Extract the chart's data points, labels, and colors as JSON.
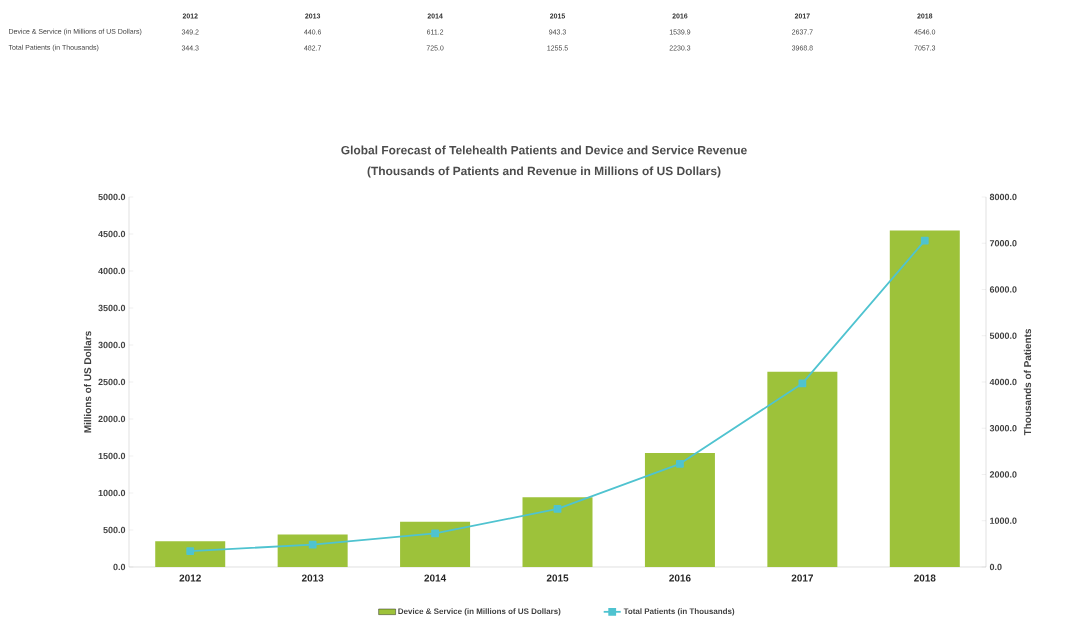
{
  "chart_data": {
    "type": "bar",
    "title": "Global Forecast of Telehealth Patients and Device and Service Revenue",
    "subtitle": "(Thousands of Patients and Revenue in Millions of US Dollars)",
    "ylabel": "Millions of US Dollars",
    "y2label": "Thousands of Patients",
    "categories": [
      "2012",
      "2013",
      "2014",
      "2015",
      "2016",
      "2017",
      "2018"
    ],
    "series": [
      {
        "name": "Device & Service (in Millions of US Dollars)",
        "color": "#9dc23a",
        "values": [
          349.2,
          440.6,
          611.2,
          943.3,
          1539.9,
          2637.7,
          4546.0
        ],
        "value_labels": [
          "349.2",
          "440.6",
          "611.2",
          "943.3",
          "1539.9",
          "2637.7",
          "4546.0"
        ]
      },
      {
        "name": "Total Patients (in Thousands)",
        "type": "line",
        "axis": "y2",
        "color": "#4fc3d0",
        "values": [
          344.3,
          482.7,
          725.0,
          1255.5,
          2230.3,
          3968.8,
          7057.3
        ],
        "value_labels": [
          "344.3",
          "482.7",
          "725.0",
          "1255.5",
          "2230.3",
          "3968.8",
          "7057.3"
        ]
      }
    ],
    "ylim": [
      0,
      5000
    ],
    "yticks": [
      {
        "value": 0,
        "label": "0.0"
      },
      {
        "value": 500,
        "label": "500.0"
      },
      {
        "value": 1000,
        "label": "1000.0"
      },
      {
        "value": 1500,
        "label": "1500.0"
      },
      {
        "value": 2000,
        "label": "2000.0"
      },
      {
        "value": 2500,
        "label": "2500.0"
      },
      {
        "value": 3000,
        "label": "3000.0"
      },
      {
        "value": 3500,
        "label": "3500.0"
      },
      {
        "value": 4000,
        "label": "4000.0"
      },
      {
        "value": 4500,
        "label": "4500.0"
      },
      {
        "value": 5000,
        "label": "5000.0"
      }
    ],
    "y2lim": [
      0,
      8000
    ],
    "y2ticks": [
      {
        "value": 0,
        "label": "0.0"
      },
      {
        "value": 1000,
        "label": "1000.0"
      },
      {
        "value": 2000,
        "label": "2000.0"
      },
      {
        "value": 3000,
        "label": "3000.0"
      },
      {
        "value": 4000,
        "label": "4000.0"
      },
      {
        "value": 5000,
        "label": "5000.0"
      },
      {
        "value": 6000,
        "label": "6000.0"
      },
      {
        "value": 7000,
        "label": "7000.0"
      },
      {
        "value": 8000,
        "label": "8000.0"
      }
    ],
    "legend": "bottom",
    "marker": "square",
    "line_style": "solid"
  }
}
